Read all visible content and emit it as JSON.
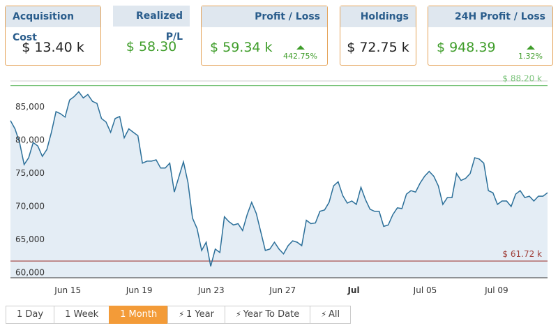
{
  "cards": [
    {
      "title": "Acquisition Cost",
      "value": "$ 13.40 k",
      "tone": "neutral",
      "bordered": true
    },
    {
      "title": "Realized P/L",
      "value": "$ 58.30",
      "tone": "positive",
      "bordered": false
    },
    {
      "title": "Profit / Loss",
      "value": "$ 59.34 k",
      "change": "442.75%",
      "tone": "positive",
      "bordered": true
    },
    {
      "title": "Holdings",
      "value": "$ 72.75 k",
      "tone": "neutral",
      "bordered": true
    },
    {
      "title": "24H Profit / Loss",
      "value": "$ 948.39",
      "change": "1.32%",
      "tone": "positive",
      "bordered": true
    }
  ],
  "chart_data": {
    "type": "area",
    "color": "#2b6f99",
    "fill": "#e4edf5",
    "grid": false,
    "values": [
      82920,
      81670,
      79600,
      76280,
      77320,
      79600,
      79080,
      77520,
      78560,
      81150,
      84270,
      83950,
      83440,
      86030,
      86550,
      87270,
      86340,
      86860,
      85820,
      85510,
      83230,
      82710,
      81150,
      83230,
      83540,
      80330,
      81670,
      81150,
      80640,
      76490,
      76800,
      76800,
      77000,
      75760,
      75760,
      76490,
      72130,
      74410,
      76700,
      73580,
      68190,
      66640,
      63320,
      64560,
      60930,
      63530,
      63010,
      68400,
      67670,
      67160,
      67360,
      66330,
      68710,
      70580,
      68920,
      66120,
      63320,
      63530,
      64560,
      63530,
      62800,
      64040,
      64770,
      64560,
      64040,
      67880,
      67360,
      67470,
      69230,
      69430,
      70580,
      73070,
      73690,
      71610,
      70470,
      70780,
      70270,
      72860,
      70990,
      69540,
      69230,
      69230,
      66950,
      67160,
      68710,
      69750,
      69640,
      71820,
      72340,
      72130,
      73480,
      74520,
      75250,
      74520,
      73070,
      70270,
      71300,
      71300,
      74930,
      73890,
      74200,
      74930,
      77320,
      77110,
      76490,
      72340,
      72030,
      70270,
      70780,
      70780,
      69950,
      71820,
      72340,
      71300,
      71510,
      70780,
      71510,
      71510,
      72030
    ],
    "xlim": [
      0,
      118
    ],
    "xticks": [
      {
        "value": 12.6,
        "label": "Jun 15"
      },
      {
        "value": 28.3,
        "label": "Jun 19"
      },
      {
        "value": 44.1,
        "label": "Jun 23"
      },
      {
        "value": 59.8,
        "label": "Jun 27"
      },
      {
        "value": 75.4,
        "label": "Jul",
        "font_weight": "bold"
      },
      {
        "value": 91.1,
        "label": "Jul 05"
      },
      {
        "value": 106.8,
        "label": "Jul 09"
      }
    ],
    "ylim": [
      59200,
      88900
    ],
    "yticks": [
      {
        "value": 60000,
        "label": "60,000"
      },
      {
        "value": 65000,
        "label": "65,000"
      },
      {
        "value": 70000,
        "label": "70,000"
      },
      {
        "value": 75000,
        "label": "75,000"
      },
      {
        "value": 80000,
        "label": "80,000"
      },
      {
        "value": 85000,
        "label": "85,000"
      }
    ],
    "reference_lines": [
      {
        "value": 88200,
        "label": "$ 88.20 k",
        "color": "#7cc47c"
      },
      {
        "value": 61720,
        "label": "$ 61.72 k",
        "color": "#a0403a"
      }
    ]
  },
  "range_buttons": [
    {
      "label": "1 Day",
      "active": false,
      "icon": false
    },
    {
      "label": "1 Week",
      "active": false,
      "icon": false
    },
    {
      "label": "1 Month",
      "active": true,
      "icon": false
    },
    {
      "label": "1 Year",
      "active": false,
      "icon": true
    },
    {
      "label": "Year To Date",
      "active": false,
      "icon": true
    },
    {
      "label": "All",
      "active": false,
      "icon": true
    }
  ]
}
